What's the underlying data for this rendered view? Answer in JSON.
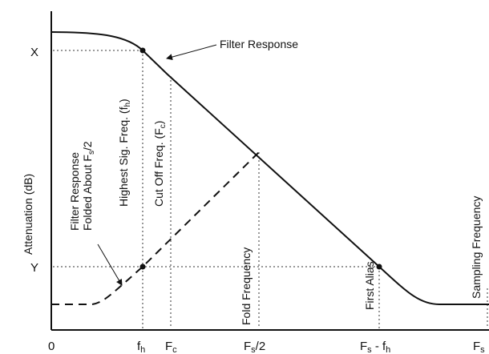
{
  "y_axis_label": "Attenuation (dB)",
  "y_ticks": {
    "x_level": "X",
    "y_level": "Y"
  },
  "x_ticks": {
    "zero": "0",
    "fh": "f",
    "fh_sub": "h",
    "fc": "F",
    "fc_sub": "c",
    "fold": "F",
    "fold_sub": "s",
    "fold_suffix": "/2",
    "alias": "F",
    "alias_sub": "s",
    "alias_mid": " - f",
    "alias_sub2": "h",
    "fs": "F",
    "fs_sub": "s"
  },
  "annotations": {
    "filter_response": "Filter Response",
    "highest_sig": "Highest Sig. Freq. (f",
    "highest_sig_sub": "h",
    "highest_sig_end": ")",
    "cutoff": "Cut Off Freq. (F",
    "cutoff_sub": "c",
    "cutoff_end": ")",
    "folded_line1": "Filter Response",
    "folded_line2": "Folded About F",
    "folded_line2_sub": "s",
    "folded_line2_end": "/2",
    "fold_frequency": "Fold Frequency",
    "first_alias": "First Alias",
    "sampling_frequency": "Sampling Frequency"
  },
  "colors": {
    "ink": "#111111",
    "guide": "#333333",
    "background": "#ffffff"
  }
}
